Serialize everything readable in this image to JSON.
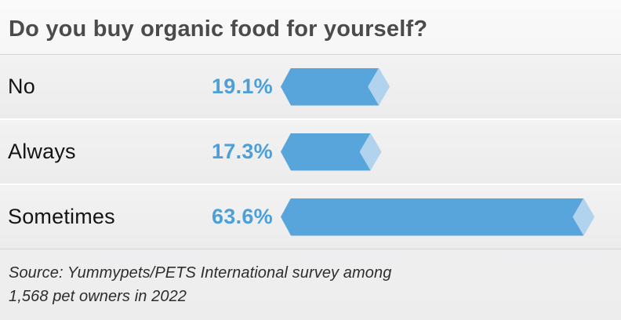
{
  "header": {
    "title": "Do you buy organic food for yourself?"
  },
  "chart_data": {
    "type": "bar",
    "orientation": "horizontal",
    "title": "Do you buy organic food for yourself?",
    "categories": [
      "No",
      "Always",
      "Sometimes"
    ],
    "values": [
      19.1,
      17.3,
      63.6
    ],
    "value_labels": [
      "19.1%",
      "17.3%",
      "63.6%"
    ],
    "unit": "%",
    "xlim": [
      0,
      65
    ],
    "grid": false,
    "legend": "none",
    "bar_color": "#58a5dc",
    "bar_tip_color": "#b1d3ee",
    "value_label_color": "#4c9fd8"
  },
  "footer": {
    "source_line1": "Source: Yummypets/PETS International survey among",
    "source_line2": "1,568 pet owners in 2022"
  }
}
